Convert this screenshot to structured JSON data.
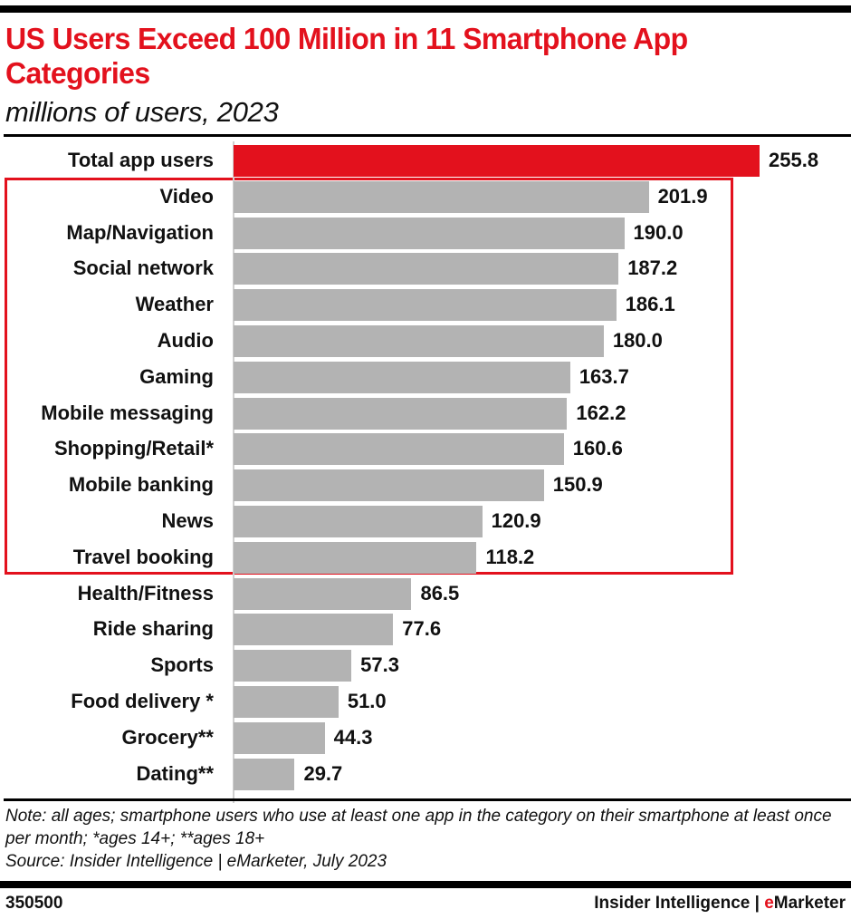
{
  "header": {
    "title": "US Users Exceed 100 Million in 11 Smartphone App Categories",
    "subtitle": "millions of users, 2023"
  },
  "colors": {
    "accent": "#e3111d",
    "bar": "#b3b3b3",
    "total_bar": "#e3111d",
    "text": "#111111"
  },
  "chart_data": {
    "type": "bar",
    "orientation": "horizontal",
    "title": "US Users Exceed 100 Million in 11 Smartphone App Categories",
    "subtitle": "millions of users, 2023",
    "xlabel": "",
    "ylabel": "",
    "xlim": [
      0,
      255.8
    ],
    "grid": false,
    "legend": "none",
    "highlight": {
      "description": "categories exceeding 100 million users",
      "categories": [
        "Video",
        "Map/Navigation",
        "Social network",
        "Weather",
        "Audio",
        "Gaming",
        "Mobile messaging",
        "Shopping/Retail*",
        "Mobile banking",
        "News",
        "Travel booking"
      ]
    },
    "categories": [
      "Total app users",
      "Video",
      "Map/Navigation",
      "Social network",
      "Weather",
      "Audio",
      "Gaming",
      "Mobile messaging",
      "Shopping/Retail*",
      "Mobile banking",
      "News",
      "Travel booking",
      "Health/Fitness",
      "Ride sharing",
      "Sports",
      "Food delivery *",
      "Grocery**",
      "Dating**"
    ],
    "values": [
      255.8,
      201.9,
      190.0,
      187.2,
      186.1,
      180.0,
      163.7,
      162.2,
      160.6,
      150.9,
      120.9,
      118.2,
      86.5,
      77.6,
      57.3,
      51.0,
      44.3,
      29.7
    ],
    "value_labels": [
      "255.8",
      "201.9",
      "190.0",
      "187.2",
      "186.1",
      "180.0",
      "163.7",
      "162.2",
      "160.6",
      "150.9",
      "120.9",
      "118.2",
      "86.5",
      "77.6",
      "57.3",
      "51.0",
      "44.3",
      "29.7"
    ]
  },
  "notes": {
    "note": "Note: all ages; smartphone users who use at least one app in the category on their smartphone at least once per month; *ages 14+; **ages 18+",
    "source": "Source: Insider Intelligence | eMarketer, July 2023"
  },
  "footer": {
    "chart_id": "350500",
    "brand_left": "Insider Intelligence | ",
    "brand_e": "e",
    "brand_right": "Marketer"
  }
}
